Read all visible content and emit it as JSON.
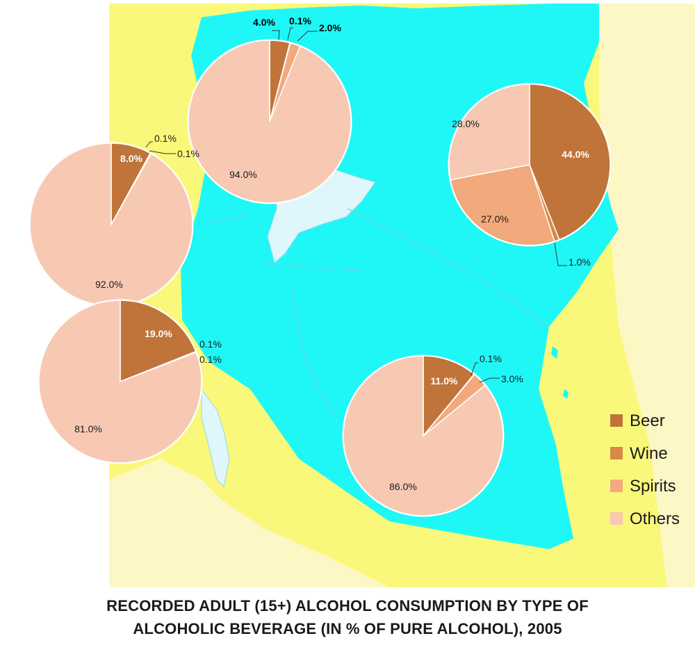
{
  "colors": {
    "Beer": "#c0743a",
    "Wine": "#d98846",
    "Spirits": "#f2a97c",
    "Others": "#f7c9b3",
    "map_background": "#f9f87a",
    "map_highlight": "#1ff7f7",
    "lake": "#dff7fb",
    "neighbor": "#fdf7c6"
  },
  "caption": {
    "line1": "RECORDED ADULT (15+) ALCOHOL CONSUMPTION BY TYPE OF",
    "line2": "ALCOHOLIC BEVERAGE (IN % OF PURE ALCOHOL), 2005"
  },
  "chart_data": {
    "type": "pie",
    "title": "RECORDED ADULT (15+) ALCOHOL CONSUMPTION BY TYPE OF ALCOHOLIC BEVERAGE (IN % OF PURE ALCOHOL), 2005",
    "legend": {
      "placement": "bottom-right",
      "entries": [
        "Beer",
        "Wine",
        "Spirits",
        "Others"
      ]
    },
    "series_order": [
      "Beer",
      "Wine",
      "Spirits",
      "Others"
    ],
    "pies": [
      {
        "values": [
          4.0,
          0.1,
          2.0,
          94.0
        ],
        "labels": [
          "4.0%",
          "0.1%",
          "2.0%",
          "94.0%"
        ]
      },
      {
        "values": [
          44.0,
          1.0,
          27.0,
          28.0
        ],
        "labels": [
          "44.0%",
          "1.0%",
          "27.0%",
          "28.0%"
        ]
      },
      {
        "values": [
          8.0,
          0.1,
          0.1,
          92.0
        ],
        "labels": [
          "8.0%",
          "0.1%",
          "0.1%",
          "92.0%"
        ]
      },
      {
        "values": [
          19.0,
          0.1,
          0.1,
          81.0
        ],
        "labels": [
          "19.0%",
          "0.1%",
          "0.1%",
          "81.0%"
        ]
      },
      {
        "values": [
          11.0,
          0.1,
          3.0,
          86.0
        ],
        "labels": [
          "11.0%",
          "0.1%",
          "3.0%",
          "86.0%"
        ]
      }
    ]
  }
}
